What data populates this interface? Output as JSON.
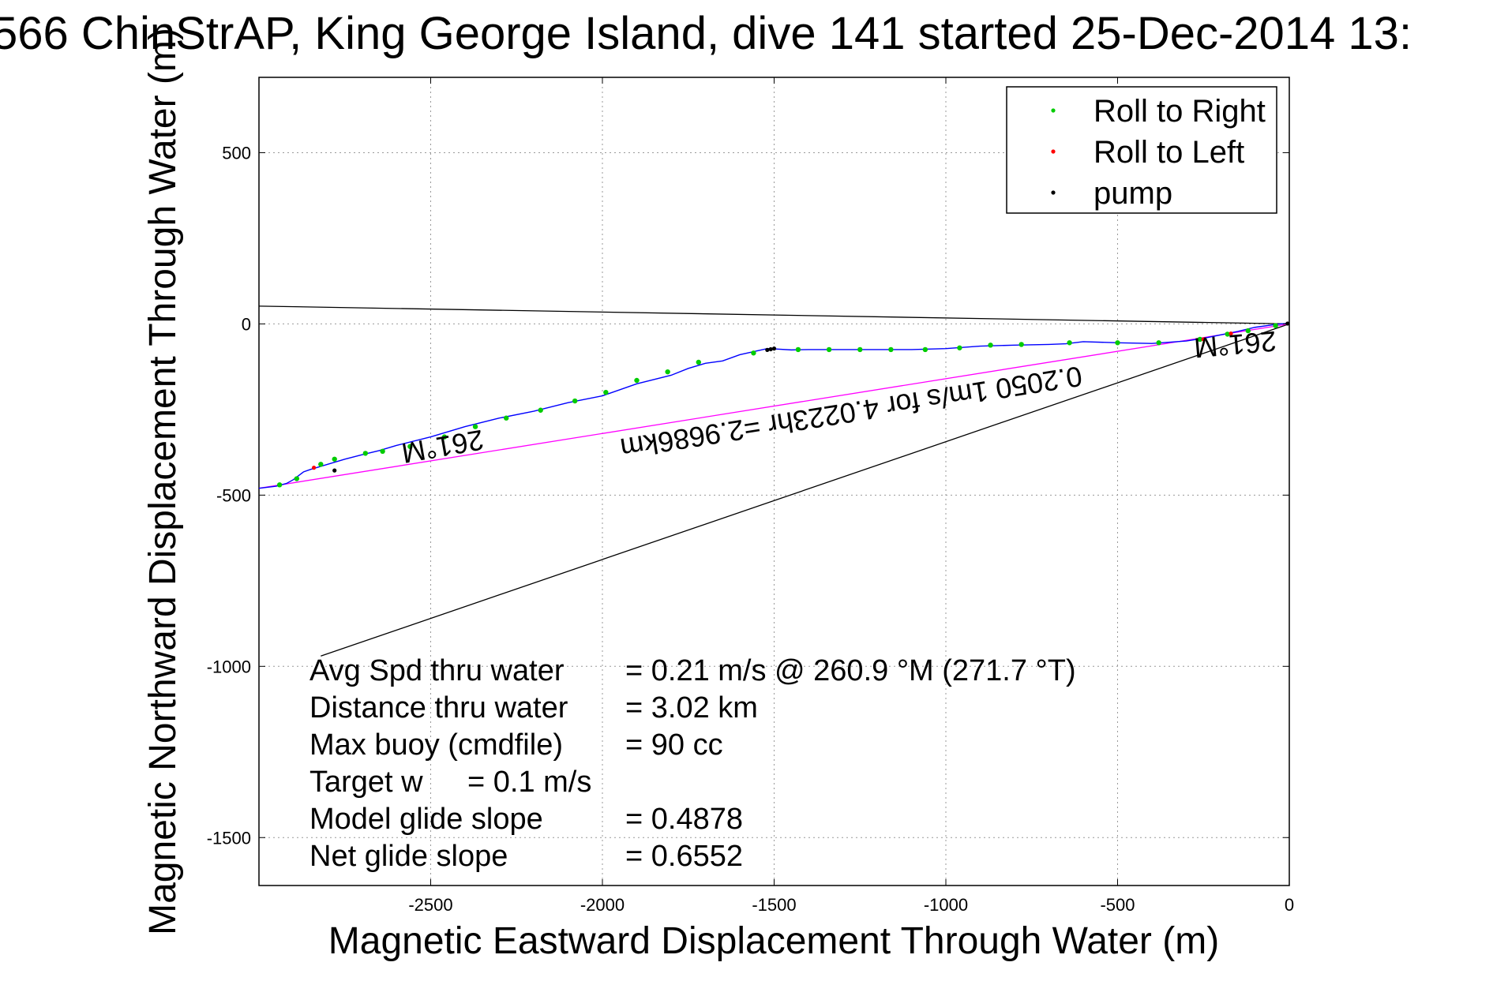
{
  "chart_data": {
    "type": "line",
    "title": "566 ChinStrAP, King George Island, dive 141 started 25-Dec-2014 13:",
    "xlabel": "Magnetic Eastward Displacement Through Water (m)",
    "ylabel": "Magnetic Northward Displacement Through Water (m)",
    "xlim": [
      -3000,
      0
    ],
    "ylim": [
      -1640,
      720
    ],
    "xticks": [
      -2500,
      -2000,
      -1500,
      -1000,
      -500,
      0
    ],
    "yticks": [
      500,
      0,
      -500,
      -1000,
      -1500
    ],
    "grid": true,
    "legend_position": "top-right",
    "legend": [
      {
        "label": "Roll to Right",
        "color": "#00cc00"
      },
      {
        "label": "Roll to Left",
        "color": "#ff0000"
      },
      {
        "label": "pump",
        "color": "#000000"
      }
    ],
    "series": [
      {
        "name": "track",
        "color": "#0000ff",
        "x": [
          0,
          -25,
          -50,
          -100,
          -150,
          -200,
          -250,
          -300,
          -400,
          -500,
          -600,
          -650,
          -700,
          -800,
          -900,
          -1000,
          -1100,
          -1200,
          -1300,
          -1400,
          -1450,
          -1500,
          -1520,
          -1600,
          -1650,
          -1700,
          -1750,
          -1800,
          -1900,
          -2000,
          -2100,
          -2200,
          -2300,
          -2400,
          -2500,
          -2600,
          -2650,
          -2700,
          -2750,
          -2800,
          -2850,
          -2870,
          -2900,
          -2920,
          -2950,
          -3000
        ],
        "y": [
          2,
          0,
          -3,
          -10,
          -22,
          -32,
          -42,
          -50,
          -57,
          -55,
          -52,
          -58,
          -60,
          -62,
          -65,
          -72,
          -75,
          -75,
          -75,
          -75,
          -76,
          -73,
          -72,
          -90,
          -108,
          -115,
          -130,
          -150,
          -175,
          -210,
          -230,
          -255,
          -275,
          -300,
          -330,
          -355,
          -370,
          -382,
          -395,
          -410,
          -425,
          -432,
          -455,
          -466,
          -474,
          -480
        ]
      },
      {
        "name": "Roll to Right",
        "color": "#00cc00",
        "x": [
          -40,
          -120,
          -180,
          -260,
          -380,
          -500,
          -640,
          -780,
          -870,
          -960,
          -1060,
          -1160,
          -1250,
          -1340,
          -1430,
          -1560,
          -1720,
          -1810,
          -1900,
          -1990,
          -2080,
          -2180,
          -2280,
          -2370,
          -2460,
          -2560,
          -2640,
          -2690,
          -2780,
          -2820,
          -2890,
          -2940
        ],
        "y": [
          -5,
          -20,
          -30,
          -45,
          -55,
          -55,
          -55,
          -60,
          -62,
          -70,
          -75,
          -75,
          -75,
          -75,
          -75,
          -85,
          -112,
          -140,
          -165,
          -200,
          -225,
          -252,
          -275,
          -300,
          -330,
          -358,
          -372,
          -378,
          -395,
          -410,
          -452,
          -470
        ]
      },
      {
        "name": "Roll to Left",
        "color": "#ff0000",
        "x": [
          -170,
          -250,
          -2840
        ],
        "y": [
          -28,
          -45,
          -420
        ]
      },
      {
        "name": "pump",
        "color": "#000000",
        "x": [
          -5,
          -1500,
          -1510,
          -1520,
          -2780
        ],
        "y": [
          1,
          -72,
          -74,
          -76,
          -428
        ]
      }
    ],
    "reference_lines": [
      {
        "name": "black-upper",
        "color": "#000000",
        "x": [
          0,
          -3000
        ],
        "y": [
          0,
          52
        ]
      },
      {
        "name": "black-lower",
        "color": "#000000",
        "x": [
          0,
          -2820
        ],
        "y": [
          0,
          -970
        ]
      },
      {
        "name": "magenta-net",
        "color": "#ff00ff",
        "x": [
          0,
          -3000
        ],
        "y": [
          0,
          -480
        ]
      }
    ],
    "annotations": [
      {
        "text": "261°M",
        "x": -160,
        "y": -32,
        "rotation": 175
      },
      {
        "text": "0.2050 1m/s for 4.0223hr =2.9686km",
        "x": -1280,
        "y": -230,
        "rotation": 171
      },
      {
        "text": "261°M",
        "x": -2470,
        "y": -330,
        "rotation": 170
      }
    ],
    "stats": [
      {
        "label": "Avg Spd thru water",
        "value": "=  0.21 m/s @ 260.9 °M (271.7 °T)"
      },
      {
        "label": "Distance thru water",
        "value": "=  3.02 km"
      },
      {
        "label": "Max buoy (cmdfile)",
        "value": "= 90 cc"
      },
      {
        "label": "Target w",
        "value": "= 0.1 m/s"
      },
      {
        "label": "Model glide slope",
        "value": "= 0.4878"
      },
      {
        "label": "Net glide slope",
        "value": "= 0.6552"
      }
    ]
  }
}
